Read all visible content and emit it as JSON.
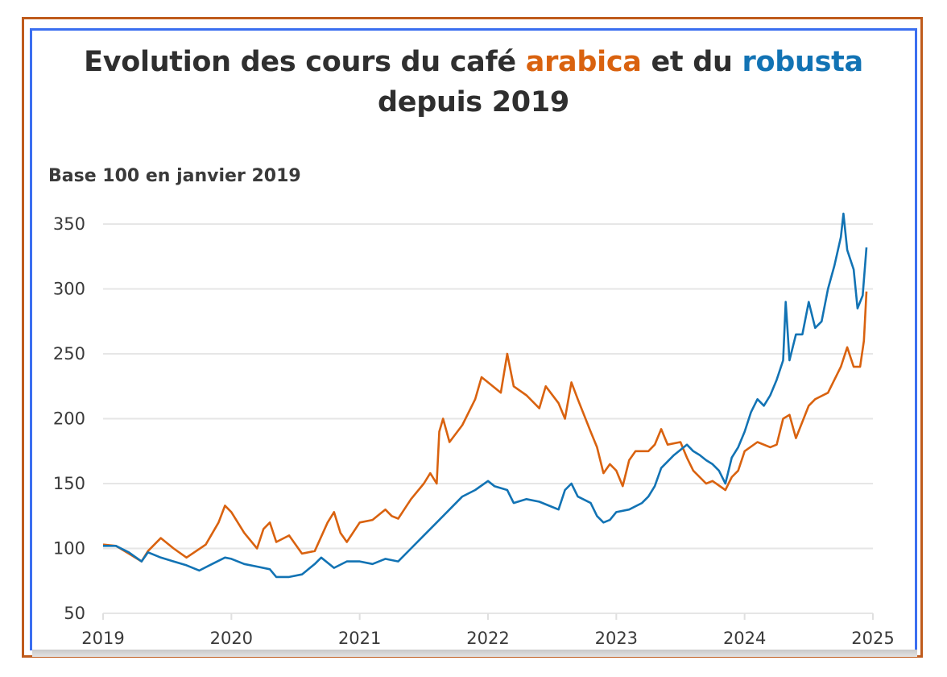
{
  "chart_data": {
    "type": "line",
    "title_parts": [
      {
        "text": "Evolution des cours du café ",
        "color": "#2f2f2f"
      },
      {
        "text": "arabica",
        "color": "#d9620f"
      },
      {
        "text": " et du ",
        "color": "#2f2f2f"
      },
      {
        "text": "robusta",
        "color": "#1273b4"
      },
      {
        "text": "depuis 2019",
        "color": "#2f2f2f"
      }
    ],
    "subtitle": "Base 100 en janvier 2019",
    "xlabel": "",
    "ylabel": "",
    "xlim": [
      2019,
      2025
    ],
    "ylim": [
      50,
      360
    ],
    "x_ticks": [
      "2019",
      "2020",
      "2021",
      "2022",
      "2023",
      "2024",
      "2025"
    ],
    "y_ticks": [
      "50",
      "100",
      "150",
      "200",
      "250",
      "300",
      "350"
    ],
    "grid": "horizontal",
    "legend": "none (series named by colored words in title)",
    "series": [
      {
        "name": "arabica",
        "color": "#d9620f",
        "x": [
          2019.0,
          2019.1,
          2019.2,
          2019.3,
          2019.35,
          2019.45,
          2019.55,
          2019.65,
          2019.8,
          2019.9,
          2019.95,
          2020.0,
          2020.1,
          2020.2,
          2020.25,
          2020.3,
          2020.35,
          2020.45,
          2020.55,
          2020.65,
          2020.75,
          2020.8,
          2020.85,
          2020.9,
          2021.0,
          2021.1,
          2021.2,
          2021.25,
          2021.3,
          2021.4,
          2021.5,
          2021.55,
          2021.6,
          2021.62,
          2021.65,
          2021.7,
          2021.8,
          2021.9,
          2021.95,
          2022.0,
          2022.1,
          2022.15,
          2022.2,
          2022.3,
          2022.4,
          2022.45,
          2022.55,
          2022.6,
          2022.65,
          2022.7,
          2022.8,
          2022.85,
          2022.9,
          2022.95,
          2023.0,
          2023.05,
          2023.1,
          2023.15,
          2023.25,
          2023.3,
          2023.35,
          2023.4,
          2023.5,
          2023.55,
          2023.6,
          2023.7,
          2023.75,
          2023.85,
          2023.9,
          2023.95,
          2024.0,
          2024.1,
          2024.2,
          2024.25,
          2024.3,
          2024.35,
          2024.4,
          2024.5,
          2024.55,
          2024.65,
          2024.75,
          2024.8,
          2024.85,
          2024.9,
          2024.93,
          2024.95
        ],
        "y": [
          103,
          102,
          96,
          90,
          98,
          108,
          100,
          93,
          103,
          120,
          133,
          128,
          112,
          100,
          115,
          120,
          105,
          110,
          96,
          98,
          120,
          128,
          112,
          105,
          120,
          122,
          130,
          125,
          123,
          138,
          150,
          158,
          150,
          190,
          200,
          182,
          195,
          215,
          232,
          228,
          220,
          250,
          225,
          218,
          208,
          225,
          212,
          200,
          228,
          215,
          190,
          178,
          158,
          165,
          160,
          148,
          168,
          175,
          175,
          180,
          192,
          180,
          182,
          170,
          160,
          150,
          152,
          145,
          155,
          160,
          175,
          182,
          178,
          180,
          200,
          203,
          185,
          210,
          215,
          220,
          240,
          255,
          240,
          240,
          260,
          298
        ]
      },
      {
        "name": "robusta",
        "color": "#1273b4",
        "x": [
          2019.0,
          2019.1,
          2019.2,
          2019.3,
          2019.35,
          2019.45,
          2019.55,
          2019.65,
          2019.75,
          2019.85,
          2019.95,
          2020.0,
          2020.1,
          2020.2,
          2020.3,
          2020.35,
          2020.45,
          2020.55,
          2020.65,
          2020.7,
          2020.8,
          2020.9,
          2021.0,
          2021.1,
          2021.2,
          2021.3,
          2021.4,
          2021.5,
          2021.6,
          2021.7,
          2021.8,
          2021.9,
          2022.0,
          2022.05,
          2022.15,
          2022.2,
          2022.3,
          2022.4,
          2022.5,
          2022.55,
          2022.6,
          2022.65,
          2022.7,
          2022.8,
          2022.85,
          2022.9,
          2022.95,
          2023.0,
          2023.1,
          2023.2,
          2023.25,
          2023.3,
          2023.35,
          2023.45,
          2023.55,
          2023.6,
          2023.65,
          2023.7,
          2023.75,
          2023.8,
          2023.85,
          2023.9,
          2023.95,
          2024.0,
          2024.05,
          2024.1,
          2024.15,
          2024.2,
          2024.25,
          2024.3,
          2024.32,
          2024.35,
          2024.4,
          2024.45,
          2024.5,
          2024.55,
          2024.6,
          2024.65,
          2024.7,
          2024.75,
          2024.77,
          2024.8,
          2024.85,
          2024.88,
          2024.92,
          2024.95
        ],
        "y": [
          102,
          102,
          97,
          90,
          97,
          93,
          90,
          87,
          83,
          88,
          93,
          92,
          88,
          86,
          84,
          78,
          78,
          80,
          88,
          93,
          85,
          90,
          90,
          88,
          92,
          90,
          100,
          110,
          120,
          130,
          140,
          145,
          152,
          148,
          145,
          135,
          138,
          136,
          132,
          130,
          145,
          150,
          140,
          135,
          125,
          120,
          122,
          128,
          130,
          135,
          140,
          148,
          162,
          172,
          180,
          175,
          172,
          168,
          165,
          160,
          150,
          170,
          178,
          190,
          205,
          215,
          210,
          218,
          230,
          245,
          290,
          245,
          265,
          265,
          290,
          270,
          275,
          300,
          318,
          340,
          358,
          330,
          315,
          285,
          295,
          332
        ]
      }
    ]
  }
}
